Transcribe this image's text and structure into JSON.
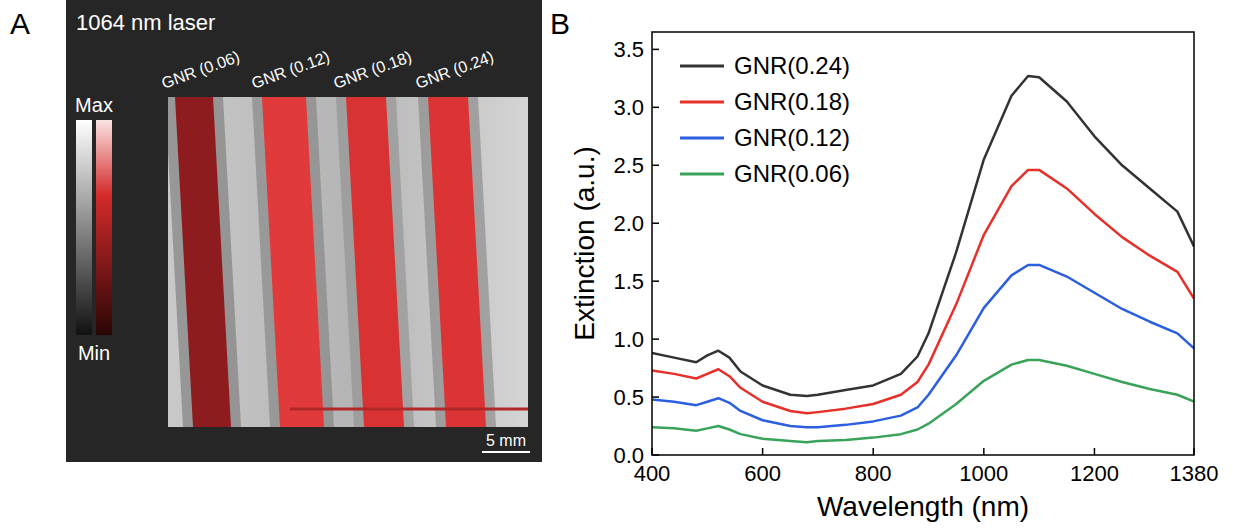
{
  "panel_labels": [
    "A",
    "B"
  ],
  "panel_a": {
    "title": "1064 nm laser",
    "stripe_labels": [
      "GNR (0.06)",
      "GNR (0.12)",
      "GNR (0.18)",
      "GNR (0.24)"
    ],
    "colorbar": {
      "max": "Max",
      "min": "Min"
    },
    "scale_bar": "5 mm"
  },
  "chart_data": {
    "type": "line",
    "x_label": "Wavelength (nm)",
    "y_label": "Extinction (a.u.)",
    "x": [
      400,
      440,
      480,
      500,
      520,
      540,
      560,
      600,
      650,
      680,
      700,
      750,
      800,
      850,
      880,
      900,
      950,
      1000,
      1050,
      1080,
      1100,
      1150,
      1200,
      1250,
      1300,
      1350,
      1380
    ],
    "series": [
      {
        "name": "GNR(0.24)",
        "color": "#333333",
        "values": [
          0.88,
          0.84,
          0.8,
          0.86,
          0.9,
          0.84,
          0.72,
          0.6,
          0.52,
          0.51,
          0.52,
          0.56,
          0.6,
          0.7,
          0.85,
          1.05,
          1.75,
          2.55,
          3.1,
          3.27,
          3.26,
          3.05,
          2.75,
          2.5,
          2.3,
          2.1,
          1.8
        ]
      },
      {
        "name": "GNR(0.18)",
        "color": "#e8302a",
        "values": [
          0.73,
          0.7,
          0.66,
          0.7,
          0.74,
          0.68,
          0.58,
          0.46,
          0.38,
          0.36,
          0.37,
          0.4,
          0.44,
          0.52,
          0.63,
          0.78,
          1.3,
          1.9,
          2.32,
          2.46,
          2.46,
          2.3,
          2.08,
          1.88,
          1.72,
          1.58,
          1.35
        ]
      },
      {
        "name": "GNR(0.12)",
        "color": "#2b5fe0",
        "values": [
          0.48,
          0.46,
          0.43,
          0.46,
          0.49,
          0.45,
          0.38,
          0.3,
          0.25,
          0.24,
          0.24,
          0.26,
          0.29,
          0.34,
          0.41,
          0.52,
          0.86,
          1.27,
          1.55,
          1.64,
          1.64,
          1.54,
          1.4,
          1.26,
          1.15,
          1.05,
          0.92
        ]
      },
      {
        "name": "GNR(0.06)",
        "color": "#3aa35a",
        "values": [
          0.24,
          0.23,
          0.21,
          0.23,
          0.25,
          0.22,
          0.18,
          0.14,
          0.12,
          0.11,
          0.12,
          0.13,
          0.15,
          0.18,
          0.22,
          0.27,
          0.44,
          0.64,
          0.78,
          0.82,
          0.82,
          0.77,
          0.7,
          0.63,
          0.57,
          0.52,
          0.46
        ]
      }
    ],
    "xlim": [
      400,
      1380
    ],
    "xticks": [
      400,
      600,
      800,
      1000,
      1200,
      1380
    ],
    "ylim": [
      0,
      3.65
    ],
    "yticks": [
      {
        "value": 0,
        "label": "0.0"
      },
      0.5,
      {
        "value": 1,
        "label": "1.0"
      },
      1.5,
      {
        "value": 2,
        "label": "2.0"
      },
      2.5,
      {
        "value": 3,
        "label": "3.0"
      },
      3.5
    ],
    "legend": "upper-left",
    "grid": false
  }
}
